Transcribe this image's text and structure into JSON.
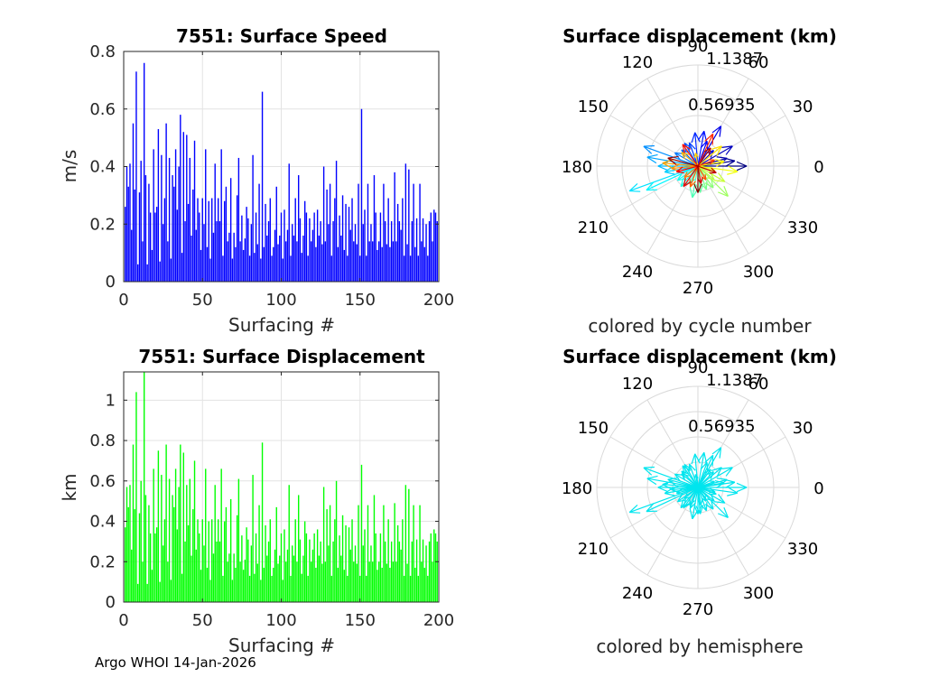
{
  "footer": "Argo WHOI 14-Jan-2026",
  "chart_data": [
    {
      "id": "speed",
      "type": "bar",
      "title": "7551: Surface Speed",
      "xlabel": "Surfacing #",
      "ylabel": "m/s",
      "xlim": [
        0,
        200
      ],
      "ylim": [
        0,
        0.8
      ],
      "xticks": [
        0,
        50,
        100,
        150,
        200
      ],
      "yticks": [
        0,
        0.2,
        0.4,
        0.6,
        0.8
      ],
      "ytick_labels": [
        "0",
        "0.2",
        "0.4",
        "0.6",
        "0.8"
      ],
      "grid": true,
      "color": "#0000ff",
      "x": [
        1,
        2,
        3,
        4,
        5,
        6,
        7,
        8,
        9,
        10,
        11,
        12,
        13,
        14,
        15,
        16,
        17,
        18,
        19,
        20,
        21,
        22,
        23,
        24,
        25,
        26,
        27,
        28,
        29,
        30,
        31,
        32,
        33,
        34,
        35,
        36,
        37,
        38,
        39,
        40,
        41,
        42,
        43,
        44,
        45,
        46,
        47,
        48,
        49,
        50,
        51,
        52,
        53,
        54,
        55,
        56,
        57,
        58,
        59,
        60,
        61,
        62,
        63,
        64,
        65,
        66,
        67,
        68,
        69,
        70,
        71,
        72,
        73,
        74,
        75,
        76,
        77,
        78,
        79,
        80,
        81,
        82,
        83,
        84,
        85,
        86,
        87,
        88,
        89,
        90,
        91,
        92,
        93,
        94,
        95,
        96,
        97,
        98,
        99,
        100,
        101,
        102,
        103,
        104,
        105,
        106,
        107,
        108,
        109,
        110,
        111,
        112,
        113,
        114,
        115,
        116,
        117,
        118,
        119,
        120,
        121,
        122,
        123,
        124,
        125,
        126,
        127,
        128,
        129,
        130,
        131,
        132,
        133,
        134,
        135,
        136,
        137,
        138,
        139,
        140,
        141,
        142,
        143,
        144,
        145,
        146,
        147,
        148,
        149,
        150,
        151,
        152,
        153,
        154,
        155,
        156,
        157,
        158,
        159,
        160,
        161,
        162,
        163,
        164,
        165,
        166,
        167,
        168,
        169,
        170,
        171,
        172,
        173,
        174,
        175,
        176,
        177,
        178,
        179,
        180,
        181,
        182,
        183,
        184,
        185,
        186,
        187,
        188,
        189,
        190,
        191,
        192,
        193,
        194,
        195,
        196,
        197,
        198,
        199
      ],
      "values": [
        0.26,
        0.4,
        0.33,
        0.41,
        0.18,
        0.55,
        0.32,
        0.73,
        0.06,
        0.31,
        0.42,
        0.14,
        0.76,
        0.37,
        0.06,
        0.34,
        0.24,
        0.11,
        0.46,
        0.24,
        0.26,
        0.53,
        0.07,
        0.44,
        0.2,
        0.29,
        0.55,
        0.14,
        0.43,
        0.08,
        0.37,
        0.33,
        0.46,
        0.25,
        0.4,
        0.58,
        0.1,
        0.52,
        0.21,
        0.51,
        0.27,
        0.43,
        0.16,
        0.32,
        0.49,
        0.18,
        0.29,
        0.24,
        0.11,
        0.29,
        0.2,
        0.46,
        0.12,
        0.28,
        0.08,
        0.29,
        0.17,
        0.41,
        0.21,
        0.29,
        0.21,
        0.46,
        0.09,
        0.28,
        0.33,
        0.14,
        0.17,
        0.36,
        0.08,
        0.17,
        0.12,
        0.3,
        0.43,
        0.14,
        0.23,
        0.11,
        0.15,
        0.26,
        0.22,
        0.09,
        0.2,
        0.44,
        0.1,
        0.24,
        0.13,
        0.34,
        0.08,
        0.66,
        0.12,
        0.27,
        0.16,
        0.21,
        0.29,
        0.09,
        0.12,
        0.18,
        0.33,
        0.13,
        0.16,
        0.24,
        0.08,
        0.25,
        0.14,
        0.18,
        0.41,
        0.09,
        0.2,
        0.16,
        0.29,
        0.14,
        0.37,
        0.22,
        0.1,
        0.16,
        0.28,
        0.24,
        0.09,
        0.22,
        0.14,
        0.18,
        0.24,
        0.12,
        0.25,
        0.16,
        0.21,
        0.13,
        0.4,
        0.14,
        0.32,
        0.2,
        0.34,
        0.09,
        0.21,
        0.29,
        0.42,
        0.12,
        0.23,
        0.16,
        0.3,
        0.11,
        0.27,
        0.09,
        0.26,
        0.18,
        0.29,
        0.14,
        0.2,
        0.13,
        0.34,
        0.09,
        0.6,
        0.2,
        0.25,
        0.09,
        0.34,
        0.14,
        0.2,
        0.14,
        0.37,
        0.24,
        0.11,
        0.14,
        0.24,
        0.12,
        0.34,
        0.21,
        0.13,
        0.29,
        0.12,
        0.21,
        0.14,
        0.38,
        0.14,
        0.27,
        0.21,
        0.18,
        0.29,
        0.09,
        0.41,
        0.13,
        0.39,
        0.09,
        0.21,
        0.34,
        0.12,
        0.22,
        0.09,
        0.34,
        0.14,
        0.22,
        0.12,
        0.2,
        0.09,
        0.21,
        0.24,
        0.14,
        0.25,
        0.24,
        0.21
      ]
    },
    {
      "id": "displacement",
      "type": "bar",
      "title": "7551: Surface Displacement",
      "xlabel": "Surfacing #",
      "ylabel": "km",
      "xlim": [
        0,
        200
      ],
      "ylim": [
        0,
        1.14
      ],
      "xticks": [
        0,
        50,
        100,
        150,
        200
      ],
      "yticks": [
        0,
        0.2,
        0.4,
        0.6,
        0.8,
        1
      ],
      "ytick_labels": [
        "0",
        "0.2",
        "0.4",
        "0.6",
        "0.8",
        "1"
      ],
      "grid": true,
      "color": "#00ff00",
      "x": [
        1,
        2,
        3,
        4,
        5,
        6,
        7,
        8,
        9,
        10,
        11,
        12,
        13,
        14,
        15,
        16,
        17,
        18,
        19,
        20,
        21,
        22,
        23,
        24,
        25,
        26,
        27,
        28,
        29,
        30,
        31,
        32,
        33,
        34,
        35,
        36,
        37,
        38,
        39,
        40,
        41,
        42,
        43,
        44,
        45,
        46,
        47,
        48,
        49,
        50,
        51,
        52,
        53,
        54,
        55,
        56,
        57,
        58,
        59,
        60,
        61,
        62,
        63,
        64,
        65,
        66,
        67,
        68,
        69,
        70,
        71,
        72,
        73,
        74,
        75,
        76,
        77,
        78,
        79,
        80,
        81,
        82,
        83,
        84,
        85,
        86,
        87,
        88,
        89,
        90,
        91,
        92,
        93,
        94,
        95,
        96,
        97,
        98,
        99,
        100,
        101,
        102,
        103,
        104,
        105,
        106,
        107,
        108,
        109,
        110,
        111,
        112,
        113,
        114,
        115,
        116,
        117,
        118,
        119,
        120,
        121,
        122,
        123,
        124,
        125,
        126,
        127,
        128,
        129,
        130,
        131,
        132,
        133,
        134,
        135,
        136,
        137,
        138,
        139,
        140,
        141,
        142,
        143,
        144,
        145,
        146,
        147,
        148,
        149,
        150,
        151,
        152,
        153,
        154,
        155,
        156,
        157,
        158,
        159,
        160,
        161,
        162,
        163,
        164,
        165,
        166,
        167,
        168,
        169,
        170,
        171,
        172,
        173,
        174,
        175,
        176,
        177,
        178,
        179,
        180,
        181,
        182,
        183,
        184,
        185,
        186,
        187,
        188,
        189,
        190,
        191,
        192,
        193,
        194,
        195,
        196,
        197,
        198,
        199
      ],
      "values": [
        0.37,
        0.57,
        0.47,
        0.58,
        0.26,
        0.78,
        0.46,
        1.04,
        0.09,
        0.44,
        0.6,
        0.2,
        1.14,
        0.53,
        0.09,
        0.48,
        0.34,
        0.16,
        0.66,
        0.34,
        0.37,
        0.75,
        0.1,
        0.63,
        0.28,
        0.41,
        0.78,
        0.2,
        0.61,
        0.11,
        0.53,
        0.47,
        0.66,
        0.36,
        0.57,
        0.78,
        0.14,
        0.74,
        0.3,
        0.58,
        0.38,
        0.61,
        0.23,
        0.46,
        0.7,
        0.26,
        0.41,
        0.34,
        0.16,
        0.41,
        0.28,
        0.66,
        0.17,
        0.4,
        0.11,
        0.41,
        0.24,
        0.58,
        0.3,
        0.41,
        0.3,
        0.66,
        0.13,
        0.4,
        0.47,
        0.2,
        0.24,
        0.51,
        0.11,
        0.24,
        0.17,
        0.43,
        0.61,
        0.2,
        0.33,
        0.16,
        0.21,
        0.37,
        0.31,
        0.13,
        0.28,
        0.63,
        0.14,
        0.34,
        0.19,
        0.48,
        0.11,
        0.79,
        0.17,
        0.38,
        0.23,
        0.3,
        0.41,
        0.13,
        0.17,
        0.26,
        0.47,
        0.19,
        0.23,
        0.34,
        0.11,
        0.36,
        0.2,
        0.26,
        0.58,
        0.13,
        0.28,
        0.23,
        0.41,
        0.2,
        0.53,
        0.31,
        0.14,
        0.23,
        0.4,
        0.34,
        0.13,
        0.31,
        0.2,
        0.26,
        0.34,
        0.17,
        0.36,
        0.23,
        0.3,
        0.19,
        0.57,
        0.2,
        0.46,
        0.28,
        0.48,
        0.13,
        0.3,
        0.41,
        0.6,
        0.17,
        0.33,
        0.23,
        0.43,
        0.16,
        0.38,
        0.13,
        0.37,
        0.26,
        0.41,
        0.2,
        0.28,
        0.19,
        0.48,
        0.13,
        0.68,
        0.28,
        0.36,
        0.13,
        0.48,
        0.2,
        0.28,
        0.2,
        0.53,
        0.34,
        0.16,
        0.2,
        0.34,
        0.17,
        0.48,
        0.3,
        0.19,
        0.41,
        0.17,
        0.3,
        0.2,
        0.49,
        0.2,
        0.38,
        0.3,
        0.26,
        0.41,
        0.13,
        0.58,
        0.19,
        0.56,
        0.13,
        0.3,
        0.48,
        0.17,
        0.31,
        0.13,
        0.48,
        0.2,
        0.31,
        0.17,
        0.28,
        0.13,
        0.3,
        0.34,
        0.2,
        0.36,
        0.34,
        0.3
      ]
    },
    {
      "id": "polar1",
      "type": "polar",
      "title": "Surface displacement (km)",
      "subtitle": "colored by cycle number",
      "rmax": 1.1387,
      "rtick_labels": [
        "1.1387",
        "0.56935"
      ],
      "angle_labels": [
        "0",
        "30",
        "60",
        "90",
        "120",
        "150",
        "180",
        "210",
        "240",
        "270",
        "300",
        "330"
      ],
      "colormap": "jet",
      "vector_angles_deg": [
        0,
        8,
        15,
        30,
        45,
        60,
        70,
        80,
        95,
        110,
        120,
        135,
        150,
        160,
        170,
        180,
        190,
        200,
        205,
        215,
        230,
        245,
        260,
        275,
        290,
        305,
        315,
        320,
        330,
        345,
        352,
        10,
        40,
        100,
        140,
        175,
        185,
        220,
        250,
        300,
        20,
        65,
        125,
        195,
        235,
        280,
        340,
        55,
        165,
        270
      ],
      "vector_lengths_km": [
        0.55,
        0.42,
        0.34,
        0.45,
        0.25,
        0.52,
        0.3,
        0.4,
        0.38,
        0.28,
        0.3,
        0.26,
        0.3,
        0.65,
        0.58,
        0.45,
        0.38,
        0.82,
        0.64,
        0.28,
        0.3,
        0.22,
        0.36,
        0.3,
        0.28,
        0.3,
        0.48,
        0.24,
        0.35,
        0.2,
        0.45,
        0.3,
        0.35,
        0.15,
        0.24,
        0.4,
        0.3,
        0.2,
        0.25,
        0.18,
        0.2,
        0.4,
        0.3,
        0.25,
        0.28,
        0.2,
        0.22,
        0.25,
        0.35,
        0.3
      ]
    },
    {
      "id": "polar2",
      "type": "polar",
      "title": "Surface displacement (km)",
      "subtitle": "colored by hemisphere",
      "rmax": 1.1387,
      "rtick_labels": [
        "1.1387",
        "0.56935"
      ],
      "angle_labels": [
        "0",
        "30",
        "60",
        "90",
        "120",
        "150",
        "180",
        "210",
        "240",
        "270",
        "300",
        "330"
      ],
      "color": "#00e5ee",
      "vector_angles_deg": [
        0,
        8,
        15,
        30,
        45,
        60,
        70,
        80,
        95,
        110,
        120,
        135,
        150,
        160,
        170,
        180,
        190,
        200,
        205,
        215,
        230,
        245,
        260,
        275,
        290,
        305,
        315,
        320,
        330,
        345,
        352,
        10,
        40,
        100,
        140,
        175,
        185,
        220,
        250,
        300,
        20,
        65,
        125,
        195,
        235,
        280,
        340,
        55,
        165,
        270
      ],
      "vector_lengths_km": [
        0.55,
        0.42,
        0.34,
        0.45,
        0.25,
        0.52,
        0.3,
        0.4,
        0.38,
        0.28,
        0.3,
        0.26,
        0.3,
        0.65,
        0.58,
        0.45,
        0.38,
        0.82,
        0.64,
        0.28,
        0.3,
        0.22,
        0.36,
        0.3,
        0.28,
        0.3,
        0.48,
        0.24,
        0.35,
        0.2,
        0.45,
        0.3,
        0.35,
        0.15,
        0.24,
        0.4,
        0.3,
        0.2,
        0.25,
        0.18,
        0.2,
        0.4,
        0.3,
        0.25,
        0.28,
        0.2,
        0.22,
        0.25,
        0.35,
        0.3
      ]
    }
  ]
}
